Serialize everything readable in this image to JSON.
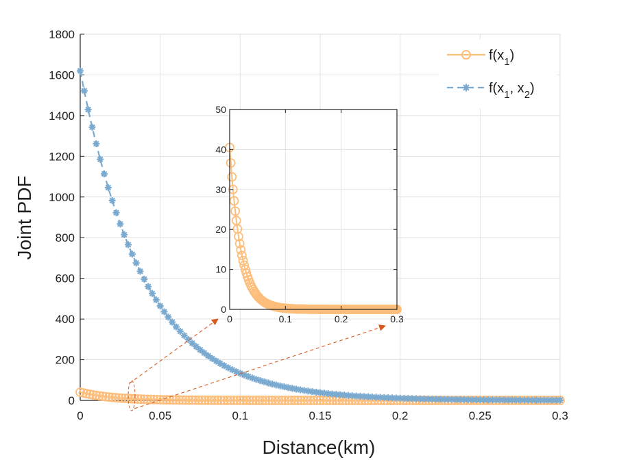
{
  "chart_data": {
    "type": "line",
    "xlabel": "Distance(km)",
    "ylabel": "Joint PDF",
    "xlim": [
      0,
      0.3
    ],
    "ylim": [
      0,
      1800
    ],
    "xticks": [
      "0",
      "0.05",
      "0.1",
      "0.15",
      "0.2",
      "0.25",
      "0.3"
    ],
    "xtick_values": [
      0,
      0.05,
      0.1,
      0.15,
      0.2,
      0.25,
      0.3
    ],
    "yticks": [
      "0",
      "200",
      "400",
      "600",
      "800",
      "1000",
      "1200",
      "1400",
      "1600",
      "1800"
    ],
    "ytick_values": [
      0,
      200,
      400,
      600,
      800,
      1000,
      1200,
      1400,
      1600,
      1800
    ],
    "grid": true,
    "legend_position": "top-right",
    "series": [
      {
        "name": "f(x_1)",
        "legend_main": "f(x",
        "legend_sub": "1",
        "legend_close": ")",
        "color": "#FDBE7C",
        "line": "solid",
        "marker": "circle",
        "peak": 40.5,
        "decay_per_km": 50,
        "x_step": 0.002
      },
      {
        "name": "f(x_1, x_2)",
        "legend_main": "f(x",
        "legend_sub": "1",
        "legend_mid": ", x",
        "legend_sub2": "2",
        "legend_close": ")",
        "color": "#7BAAD0",
        "line": "dashed",
        "marker": "asterisk",
        "peak": 1620,
        "decay_per_km": 25,
        "x_step": 0.0025
      }
    ],
    "inset": {
      "xlim": [
        0,
        0.3
      ],
      "ylim": [
        0,
        50
      ],
      "xticks": [
        "0",
        "0.1",
        "0.2",
        "0.3"
      ],
      "xtick_values": [
        0,
        0.1,
        0.2,
        0.3
      ],
      "yticks": [
        "0",
        "10",
        "20",
        "30",
        "40",
        "50"
      ],
      "ytick_values": [
        0,
        10,
        20,
        30,
        40,
        50
      ],
      "series": "f(x_1)",
      "zoom_source": "ellipse around x = 0.032"
    }
  },
  "colors": {
    "orange": "#FDBE7C",
    "blue": "#7BAAD0",
    "arrow": "#D85A1E",
    "grid": "#E2E2E2"
  }
}
